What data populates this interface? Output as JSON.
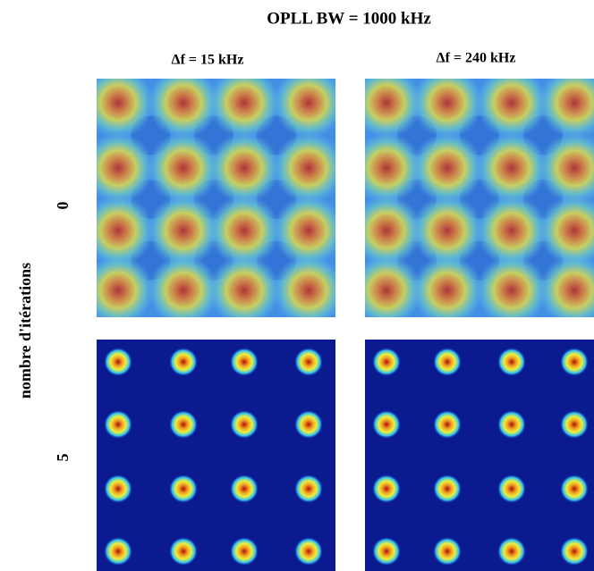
{
  "title": "OPLL BW = 1000 kHz",
  "columns": [
    "Δf = 15 kHz",
    "Δf = 240 kHz"
  ],
  "rows": [
    "0",
    "5"
  ],
  "y_label": "nombre d'itérations"
}
